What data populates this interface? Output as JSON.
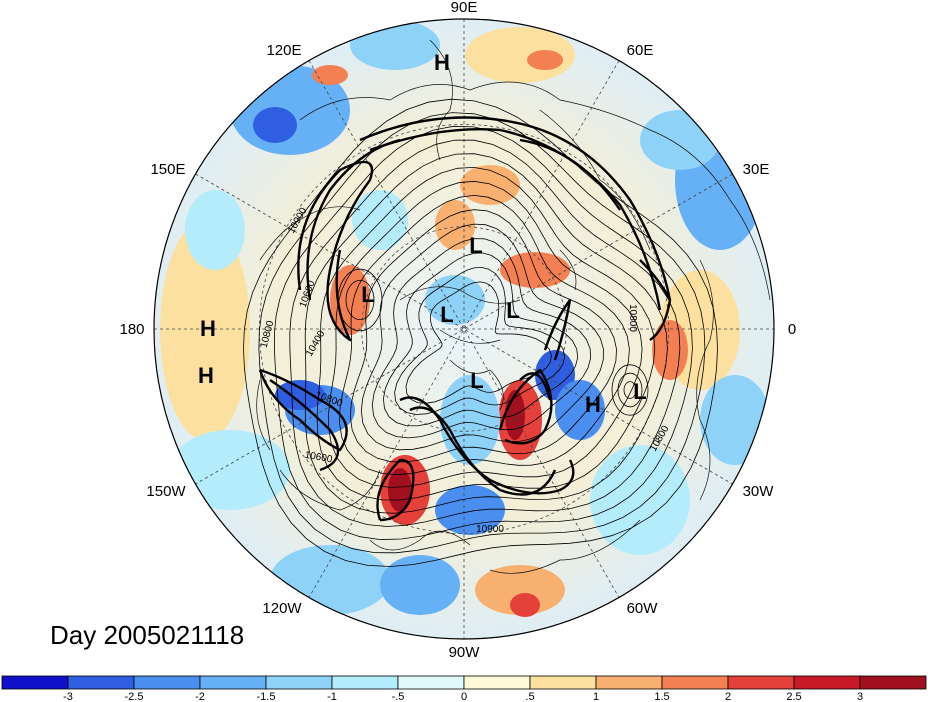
{
  "title_text": "Day 2005021118",
  "longitude_labels": [
    "90E",
    "60E",
    "30E",
    "0",
    "30W",
    "60W",
    "90W",
    "120W",
    "150W",
    "180",
    "150E",
    "120E"
  ],
  "pressure_systems": [
    {
      "type": "H",
      "region": "Central Siberia"
    },
    {
      "type": "H",
      "region": "North Pacific"
    },
    {
      "type": "H",
      "region": "North Pacific"
    },
    {
      "type": "H",
      "region": "North Atlantic"
    },
    {
      "type": "L",
      "region": "Siberian Arctic"
    },
    {
      "type": "L",
      "region": "East Siberian Sea"
    },
    {
      "type": "L",
      "region": "Arctic Ocean"
    },
    {
      "type": "L",
      "region": "Barents Sea"
    },
    {
      "type": "L",
      "region": "Canadian Arctic"
    },
    {
      "type": "L",
      "region": "Eastern Atlantic"
    }
  ],
  "contour_labels": [
    "10900",
    "10800",
    "10800",
    "10600",
    "10900",
    "10800",
    "10800",
    "10600",
    "10400"
  ],
  "colorbar": {
    "tick_labels": [
      "-3",
      "-2.5",
      "-2",
      "-1.5",
      "-1",
      "-.5",
      "0",
      ".5",
      "1",
      "1.5",
      "2",
      "2.5",
      "3"
    ],
    "colors": [
      "#1010c8",
      "#2f5fe0",
      "#4a8ef0",
      "#66b0f5",
      "#8fd2f8",
      "#b4ecfb",
      "#e2f9fc",
      "#fdf8d6",
      "#fbe0a0",
      "#f8b070",
      "#f28052",
      "#e6403a",
      "#c81a28",
      "#a0101e"
    ]
  },
  "colors": {
    "background": "#ffffff",
    "contour": "#000000",
    "jet": "#000000"
  }
}
